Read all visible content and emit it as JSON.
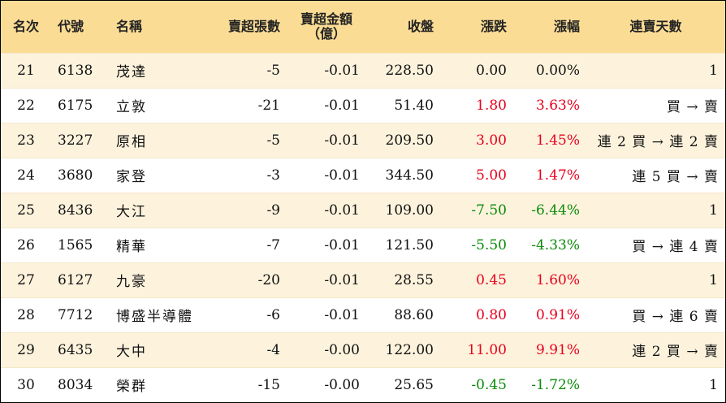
{
  "table": {
    "headers": {
      "rank": "名次",
      "code": "代號",
      "name": "名稱",
      "net_sell_lots": "賣超張數",
      "net_sell_amount_line1": "賣超金額",
      "net_sell_amount_line2": "（億）",
      "close": "收盤",
      "change": "漲跌",
      "change_pct": "漲幅",
      "consecutive": "連賣天數"
    },
    "rows": [
      {
        "rank": "21",
        "code": "6138",
        "name": "茂達",
        "lots": "-5",
        "amount": "-0.01",
        "close": "228.50",
        "change": "0.00",
        "pct": "0.00%",
        "dir": "flat",
        "streak": "1"
      },
      {
        "rank": "22",
        "code": "6175",
        "name": "立敦",
        "lots": "-21",
        "amount": "-0.01",
        "close": "51.40",
        "change": "1.80",
        "pct": "3.63%",
        "dir": "up",
        "streak": "買 → 賣"
      },
      {
        "rank": "23",
        "code": "3227",
        "name": "原相",
        "lots": "-5",
        "amount": "-0.01",
        "close": "209.50",
        "change": "3.00",
        "pct": "1.45%",
        "dir": "up",
        "streak": "連 2 買 → 連 2 賣"
      },
      {
        "rank": "24",
        "code": "3680",
        "name": "家登",
        "lots": "-3",
        "amount": "-0.01",
        "close": "344.50",
        "change": "5.00",
        "pct": "1.47%",
        "dir": "up",
        "streak": "連 5 買 → 賣"
      },
      {
        "rank": "25",
        "code": "8436",
        "name": "大江",
        "lots": "-9",
        "amount": "-0.01",
        "close": "109.00",
        "change": "-7.50",
        "pct": "-6.44%",
        "dir": "down",
        "streak": "1"
      },
      {
        "rank": "26",
        "code": "1565",
        "name": "精華",
        "lots": "-7",
        "amount": "-0.01",
        "close": "121.50",
        "change": "-5.50",
        "pct": "-4.33%",
        "dir": "down",
        "streak": "買 → 連 4 賣"
      },
      {
        "rank": "27",
        "code": "6127",
        "name": "九豪",
        "lots": "-20",
        "amount": "-0.01",
        "close": "28.55",
        "change": "0.45",
        "pct": "1.60%",
        "dir": "up",
        "streak": "1"
      },
      {
        "rank": "28",
        "code": "7712",
        "name": "博盛半導體",
        "lots": "-6",
        "amount": "-0.01",
        "close": "88.60",
        "change": "0.80",
        "pct": "0.91%",
        "dir": "up",
        "streak": "買 → 連 6 賣"
      },
      {
        "rank": "29",
        "code": "6435",
        "name": "大中",
        "lots": "-4",
        "amount": "-0.00",
        "close": "122.00",
        "change": "11.00",
        "pct": "9.91%",
        "dir": "up",
        "streak": "連 2 買 → 賣"
      },
      {
        "rank": "30",
        "code": "8034",
        "name": "榮群",
        "lots": "-15",
        "amount": "-0.00",
        "close": "25.65",
        "change": "-0.45",
        "pct": "-1.72%",
        "dir": "down",
        "streak": "1"
      }
    ]
  },
  "colors": {
    "header_bg": "#fbdc95",
    "odd_row_bg": "#fdf3dd",
    "up": "#e8001c",
    "down": "#0a8a0a"
  }
}
